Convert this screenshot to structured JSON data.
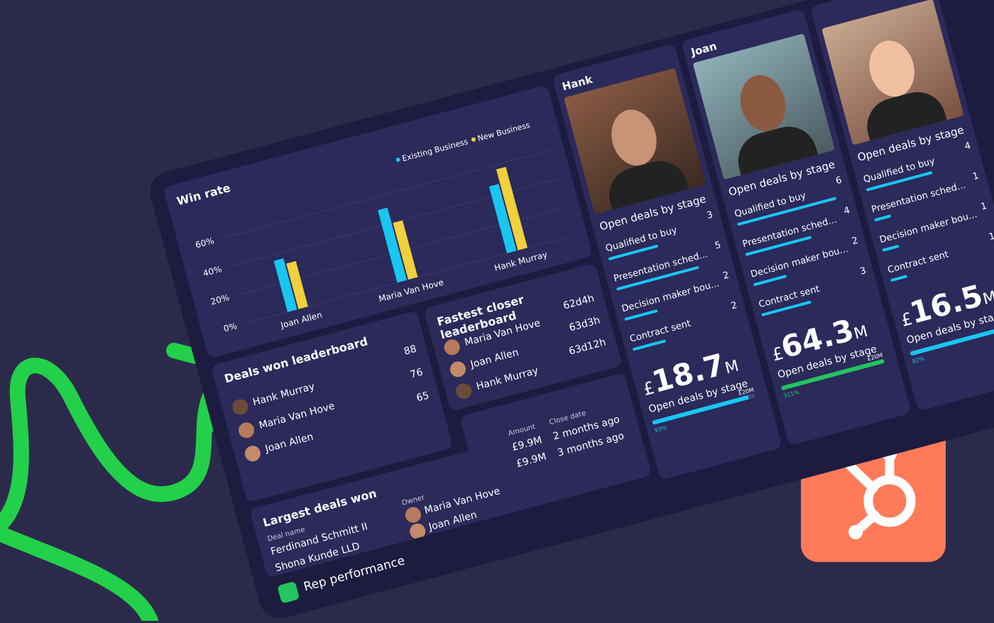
{
  "dashboard_title": "Rep performance",
  "chart_data": {
    "type": "bar",
    "title": "Win rate",
    "categories": [
      "Joan Allen",
      "Maria Van Hove",
      "Hank Murray"
    ],
    "series": [
      {
        "name": "Existing Business",
        "color": "#19c6f2",
        "values": [
          36,
          51,
          47
        ]
      },
      {
        "name": "New Business",
        "color": "#f0d03c",
        "values": [
          32,
          40,
          57
        ]
      }
    ],
    "ylim": [
      0,
      70
    ],
    "yticks": [
      {
        "value": 0,
        "label": "0%"
      },
      {
        "value": 20,
        "label": "20%"
      },
      {
        "value": 40,
        "label": "40%"
      },
      {
        "value": 60,
        "label": "60%"
      }
    ],
    "grid": true
  },
  "deals_won": {
    "title": "Deals won leaderboard",
    "rows": [
      {
        "name": "Hank Murray",
        "value": 88
      },
      {
        "name": "Maria Van Hove",
        "value": 76
      },
      {
        "name": "Joan Allen",
        "value": 65
      }
    ]
  },
  "fastest_closer": {
    "title": "Fastest closer leaderboard",
    "rows": [
      {
        "name": "Maria Van Hove",
        "time": "62d4h"
      },
      {
        "name": "Joan Allen",
        "time": "63d3h"
      },
      {
        "name": "Hank Murray",
        "time": "63d12h"
      }
    ]
  },
  "largest_deals": {
    "title": "Largest deals won",
    "headers": [
      "Deal name",
      "Owner",
      "Amount",
      "Close date"
    ],
    "rows": [
      [
        "Ferdinand Schmitt II",
        "Maria Van Hove",
        "£9.9M",
        "2 months ago"
      ],
      [
        "Shona Kunde LLD",
        "Joan Allen",
        "£9.9M",
        "3 months ago"
      ]
    ]
  },
  "reps": [
    {
      "name": "Hank",
      "stages_title": "Open deals by stage",
      "stages": [
        {
          "label": "Qualified to buy",
          "count": 3
        },
        {
          "label": "Presentation sched...",
          "count": 5
        },
        {
          "label": "Decision maker bou...",
          "count": 2
        },
        {
          "label": "Contract sent",
          "count": 2
        }
      ],
      "total": {
        "currency": "£",
        "amount": 18.7,
        "unit": "M"
      },
      "total_label": "Open deals by stage",
      "progress": {
        "value": 93,
        "label": "93%",
        "color": "#19c6f2"
      },
      "target": "£20M"
    },
    {
      "name": "Joan",
      "stages_title": "Open deals by stage",
      "stages": [
        {
          "label": "Qualified to buy",
          "count": 6
        },
        {
          "label": "Presentation sched...",
          "count": 4
        },
        {
          "label": "Decision maker bou...",
          "count": 2
        },
        {
          "label": "Contract sent",
          "count": 3
        }
      ],
      "total": {
        "currency": "£",
        "amount": 64.3,
        "unit": "M"
      },
      "total_label": "Open deals by stage",
      "progress": {
        "value": 321,
        "label": "321%",
        "color": "#22c55e"
      },
      "target": "£20M"
    },
    {
      "stages_title": "Open deals by stage",
      "stages": [
        {
          "label": "Qualified to buy",
          "count": 4
        },
        {
          "label": "Presentation sched...",
          "count": 1
        },
        {
          "label": "Decision maker bou...",
          "count": 1
        },
        {
          "label": "Contract sent",
          "count": 1
        }
      ],
      "total": {
        "currency": "£",
        "amount": 16.5,
        "unit": "M"
      },
      "total_label": "Open deals by stage",
      "progress": {
        "value": 82,
        "label": "82%",
        "color": "#19c6f2"
      }
    }
  ]
}
